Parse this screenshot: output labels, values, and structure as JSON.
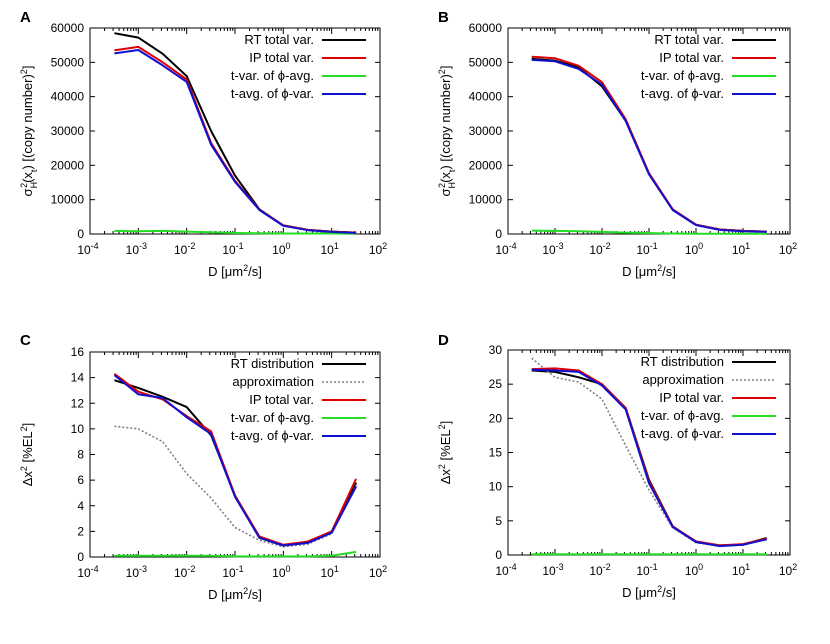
{
  "colors": {
    "rt": "#000000",
    "approx": "#808080",
    "ip": "#e00000",
    "tvar": "#22dd22",
    "tavg": "#1010d0"
  },
  "chart_data": [
    {
      "panel": "A",
      "type": "line",
      "xscale": "log",
      "xlim": [
        0.0001,
        100
      ],
      "ylim": [
        0,
        60000
      ],
      "xticks": [
        "10-4",
        "10-3",
        "10-2",
        "10-1",
        "100",
        "101",
        "102"
      ],
      "yticks": [
        "0",
        "10000",
        "20000",
        "30000",
        "40000",
        "50000",
        "60000"
      ],
      "xlabel": "D [μm2/s]",
      "ylabel": "σH2(xt) [(copy number)2]",
      "legend_position": "top-right",
      "x": [
        0.00032,
        0.001,
        0.0032,
        0.01,
        0.032,
        0.1,
        0.32,
        1,
        3.2,
        10,
        32
      ],
      "series": [
        {
          "name": "RT total var.",
          "color": "rt",
          "dash": false,
          "values": [
            58500,
            57200,
            52500,
            46000,
            30000,
            17000,
            7200,
            2500,
            1200,
            700,
            400
          ]
        },
        {
          "name": "IP total var.",
          "color": "ip",
          "dash": false,
          "values": [
            53500,
            54500,
            50000,
            45000,
            26500,
            15500,
            7100,
            2500,
            1200,
            700,
            400
          ]
        },
        {
          "name": "t-var. of ϕ-avg.",
          "color": "tvar",
          "dash": false,
          "values": [
            900,
            800,
            900,
            700,
            500,
            300,
            200,
            150,
            150,
            150,
            100
          ]
        },
        {
          "name": "t-avg. of ϕ-var.",
          "color": "tavg",
          "dash": false,
          "values": [
            52600,
            53600,
            49100,
            44300,
            26000,
            15200,
            7000,
            2400,
            1100,
            600,
            300
          ]
        }
      ]
    },
    {
      "panel": "B",
      "type": "line",
      "xscale": "log",
      "xlim": [
        0.0001,
        100
      ],
      "ylim": [
        0,
        60000
      ],
      "xticks": [
        "10-4",
        "10-3",
        "10-2",
        "10-1",
        "100",
        "101",
        "102"
      ],
      "yticks": [
        "0",
        "10000",
        "20000",
        "30000",
        "40000",
        "50000",
        "60000"
      ],
      "xlabel": "D [μm2/s]",
      "ylabel": "σH2(xt) [(copy number)2]",
      "legend_position": "top-right",
      "x": [
        0.00032,
        0.001,
        0.0032,
        0.01,
        0.032,
        0.1,
        0.32,
        1,
        3.2,
        10,
        32
      ],
      "series": [
        {
          "name": "RT total var.",
          "color": "rt",
          "dash": false,
          "values": [
            51000,
            50500,
            48500,
            43000,
            33000,
            17500,
            7100,
            2700,
            1300,
            900,
            700
          ]
        },
        {
          "name": "IP total var.",
          "color": "ip",
          "dash": false,
          "values": [
            51600,
            51200,
            49000,
            44200,
            33400,
            17700,
            7200,
            2700,
            1300,
            900,
            700
          ]
        },
        {
          "name": "t-var. of ϕ-avg.",
          "color": "tvar",
          "dash": false,
          "values": [
            1000,
            900,
            800,
            600,
            400,
            250,
            150,
            100,
            80,
            60,
            50
          ]
        },
        {
          "name": "t-avg. of ϕ-var.",
          "color": "tavg",
          "dash": false,
          "values": [
            50700,
            50300,
            48100,
            43500,
            32900,
            17400,
            7000,
            2600,
            1200,
            800,
            650
          ]
        }
      ]
    },
    {
      "panel": "C",
      "type": "line",
      "xscale": "log",
      "xlim": [
        0.0001,
        100
      ],
      "ylim": [
        0,
        16
      ],
      "xticks": [
        "10-4",
        "10-3",
        "10-2",
        "10-1",
        "100",
        "101",
        "102"
      ],
      "yticks": [
        "0",
        "2",
        "4",
        "6",
        "8",
        "10",
        "12",
        "14",
        "16"
      ],
      "xlabel": "D [μm2/s]",
      "ylabel": "Δx2 [%EL2]",
      "legend_position": "top-right",
      "x": [
        0.00032,
        0.001,
        0.0032,
        0.01,
        0.032,
        0.1,
        0.32,
        1,
        3.2,
        10,
        32
      ],
      "series": [
        {
          "name": "RT distribution",
          "color": "rt",
          "dash": false,
          "values": [
            13.8,
            13.2,
            12.5,
            11.7,
            9.5,
            4.8,
            1.5,
            0.9,
            1.1,
            2.0,
            5.8
          ]
        },
        {
          "name": "approximation",
          "color": "approx",
          "dash": true,
          "values": [
            10.2,
            10.0,
            9.0,
            6.5,
            4.6,
            2.3,
            1.3,
            0.8,
            1.0,
            1.8,
            5.6
          ]
        },
        {
          "name": "IP total var.",
          "color": "ip",
          "dash": false,
          "values": [
            14.3,
            12.9,
            12.3,
            11.0,
            9.8,
            4.8,
            1.6,
            0.95,
            1.2,
            2.0,
            6.1
          ]
        },
        {
          "name": "t-var. of ϕ-avg.",
          "color": "tvar",
          "dash": false,
          "values": [
            0.1,
            0.1,
            0.1,
            0.1,
            0.1,
            0.05,
            0.05,
            0.05,
            0.05,
            0.1,
            0.4
          ]
        },
        {
          "name": "t-avg. of ϕ-var.",
          "color": "tavg",
          "dash": false,
          "values": [
            14.2,
            12.7,
            12.4,
            10.9,
            9.6,
            4.7,
            1.5,
            0.9,
            1.1,
            1.9,
            5.5
          ]
        }
      ]
    },
    {
      "panel": "D",
      "type": "line",
      "xscale": "log",
      "xlim": [
        0.0001,
        100
      ],
      "ylim": [
        0,
        30
      ],
      "xticks": [
        "10-4",
        "10-3",
        "10-2",
        "10-1",
        "100",
        "101",
        "102"
      ],
      "yticks": [
        "0",
        "5",
        "10",
        "15",
        "20",
        "25",
        "30"
      ],
      "xlabel": "D [μm2/s]",
      "ylabel": "Δx2 [%EL2]",
      "legend_position": "top-right",
      "x": [
        0.00032,
        0.001,
        0.0032,
        0.01,
        0.032,
        0.1,
        0.32,
        1,
        3.2,
        10,
        32
      ],
      "series": [
        {
          "name": "RT distribution",
          "color": "rt",
          "dash": false,
          "values": [
            27.0,
            26.8,
            26.0,
            25.0,
            21.5,
            11.0,
            4.2,
            1.9,
            1.4,
            1.5,
            2.5
          ]
        },
        {
          "name": "approximation",
          "color": "approx",
          "dash": true,
          "values": [
            28.8,
            26.0,
            25.3,
            22.8,
            16.0,
            9.5,
            4.0,
            1.8,
            1.3,
            1.5,
            2.3
          ]
        },
        {
          "name": "IP total var.",
          "color": "ip",
          "dash": false,
          "values": [
            27.2,
            27.3,
            27.0,
            25.0,
            21.5,
            10.8,
            4.2,
            2.0,
            1.4,
            1.6,
            2.4
          ]
        },
        {
          "name": "t-var. of ϕ-avg.",
          "color": "tvar",
          "dash": false,
          "values": [
            0.1,
            0.1,
            0.1,
            0.1,
            0.1,
            0.1,
            0.1,
            0.1,
            0.1,
            0.1,
            0.1
          ]
        },
        {
          "name": "t-avg. of ϕ-var.",
          "color": "tavg",
          "dash": false,
          "values": [
            27.1,
            27.0,
            26.8,
            24.8,
            21.3,
            10.5,
            4.1,
            1.9,
            1.3,
            1.5,
            2.3
          ]
        }
      ]
    }
  ]
}
